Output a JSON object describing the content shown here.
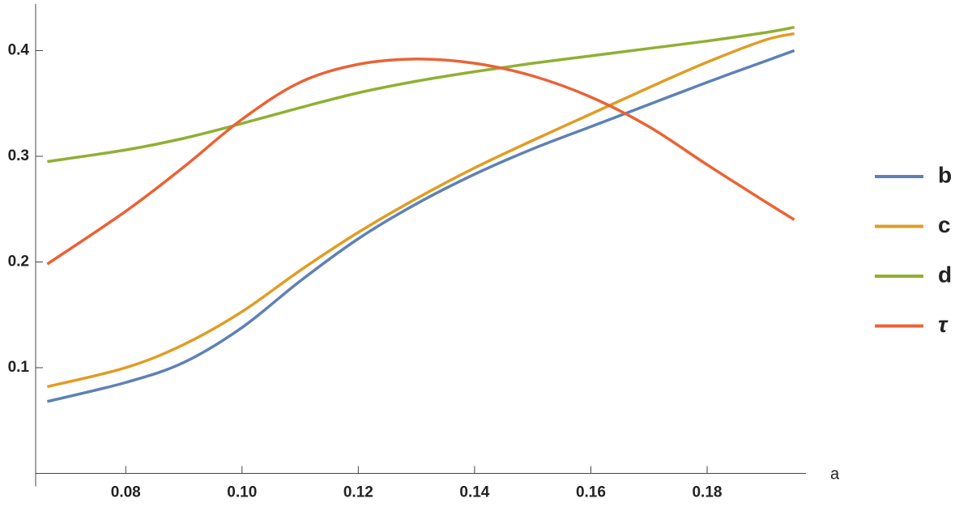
{
  "chart_data": {
    "type": "line",
    "x_label": "a",
    "x": [
      0.0665,
      0.08,
      0.09,
      0.1,
      0.11,
      0.12,
      0.13,
      0.14,
      0.15,
      0.16,
      0.17,
      0.18,
      0.19,
      0.195
    ],
    "series": [
      {
        "name": "b",
        "color": "#5e81b5",
        "values": [
          0.068,
          0.086,
          0.105,
          0.138,
          0.182,
          0.222,
          0.255,
          0.283,
          0.307,
          0.328,
          0.349,
          0.37,
          0.39,
          0.4
        ]
      },
      {
        "name": "c",
        "color": "#e19c24",
        "values": [
          0.082,
          0.1,
          0.122,
          0.153,
          0.192,
          0.228,
          0.26,
          0.289,
          0.315,
          0.34,
          0.365,
          0.389,
          0.41,
          0.416
        ]
      },
      {
        "name": "d",
        "color": "#8fb032",
        "values": [
          0.295,
          0.306,
          0.317,
          0.331,
          0.346,
          0.36,
          0.371,
          0.38,
          0.388,
          0.395,
          0.402,
          0.409,
          0.417,
          0.422
        ]
      },
      {
        "name": "τ",
        "color": "#eb6235",
        "values": [
          0.198,
          0.248,
          0.29,
          0.335,
          0.37,
          0.387,
          0.392,
          0.388,
          0.376,
          0.356,
          0.328,
          0.292,
          0.257,
          0.24
        ]
      }
    ],
    "xlim": [
      0.0645,
      0.197
    ],
    "xticks": [
      0.08,
      {
        "value": 0.1,
        "label": "0.10"
      },
      0.12,
      0.14,
      0.16,
      0.18
    ],
    "ylim": [
      0,
      0.444
    ],
    "yticks": [
      0.1,
      0.2,
      0.3,
      0.4
    ],
    "legend": "right"
  }
}
